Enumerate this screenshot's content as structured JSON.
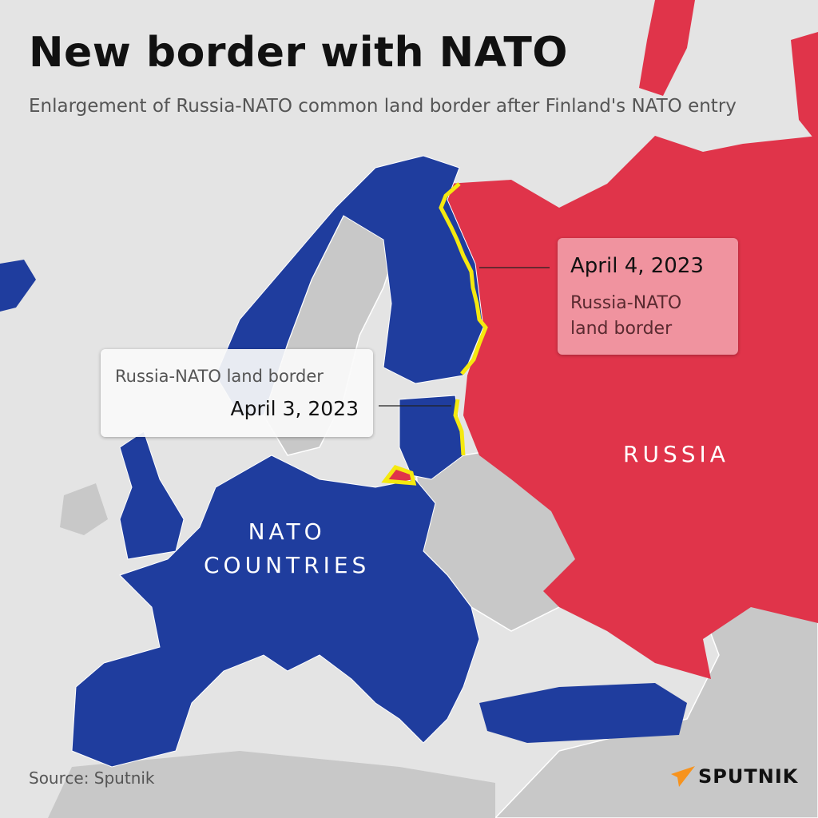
{
  "header": {
    "title": "New border with NATO",
    "subtitle": "Enlargement of Russia-NATO common land border after Finland's NATO entry"
  },
  "callouts": [
    {
      "date": "April 4, 2023",
      "label": "Russia-NATO land border"
    },
    {
      "date": "April 3, 2023",
      "label": "Russia-NATO land border"
    }
  ],
  "regions": {
    "russia": "RUSSIA",
    "nato_line1": "NATO",
    "nato_line2": "COUNTRIES"
  },
  "footer": {
    "source": "Source: Sputnik",
    "logo": "SPUTNIK"
  },
  "colors": {
    "background": "#e4e4e4",
    "non_nato": "#c8c8c8",
    "nato": "#1f3d9e",
    "russia": "#e0344a",
    "border_highlight": "#f5e90f",
    "logo_accent": "#f7931e"
  }
}
